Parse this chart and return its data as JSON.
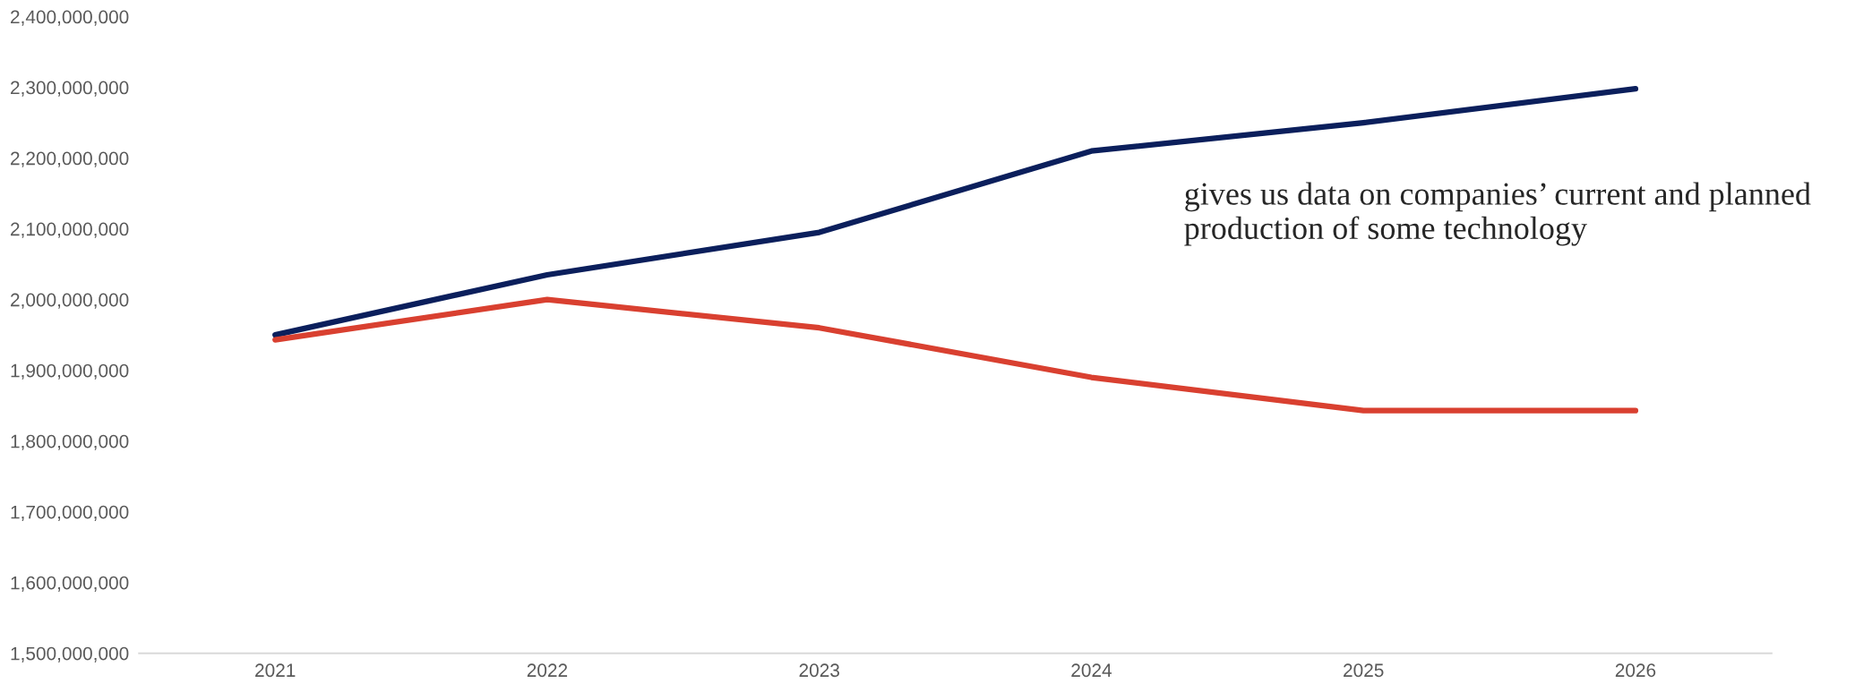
{
  "chart_data": {
    "type": "line",
    "categories": [
      "2021",
      "2022",
      "2023",
      "2024",
      "2025",
      "2026"
    ],
    "series": [
      {
        "color": "#0b1f5c",
        "values": [
          1950000000,
          2035000000,
          2095000000,
          2210000000,
          2250000000,
          2298000000
        ]
      },
      {
        "color": "#d94030",
        "values": [
          1943000000,
          2000000000,
          1960000000,
          1890000000,
          1843000000,
          1843000000
        ]
      }
    ],
    "ylim": [
      1500000000,
      2400000000
    ],
    "yticks": [
      {
        "value": 1500000000,
        "label": "1,500,000,000"
      },
      {
        "value": 1600000000,
        "label": "1,600,000,000"
      },
      {
        "value": 1700000000,
        "label": "1,700,000,000"
      },
      {
        "value": 1800000000,
        "label": "1,800,000,000"
      },
      {
        "value": 1900000000,
        "label": "1,900,000,000"
      },
      {
        "value": 2000000000,
        "label": "2,000,000,000"
      },
      {
        "value": 2100000000,
        "label": "2,100,000,000"
      },
      {
        "value": 2200000000,
        "label": "2,200,000,000"
      },
      {
        "value": 2300000000,
        "label": "2,300,000,000"
      },
      {
        "value": 2400000000,
        "label": "2,400,000,000"
      }
    ],
    "annotations": [
      "gives us data on companies’ current and planned production of some technology"
    ],
    "grid": false,
    "legend": false,
    "marker": "none",
    "line_style": "solid"
  }
}
